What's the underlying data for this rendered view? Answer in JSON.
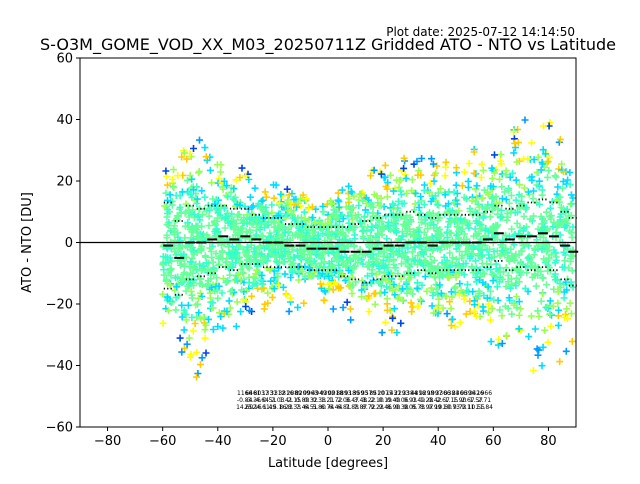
{
  "plot_date": "Plot date: 2025-07-12 14:14:50",
  "chart_data": {
    "type": "scatter",
    "title": "S-O3M_GOME_VOD_XX_M03_20250711Z Gridded ATO - NTO vs Latitude",
    "xlabel": "Latitude [degrees]",
    "ylabel": "ATO - NTO [DU]",
    "xlim": [
      -90,
      90
    ],
    "ylim": [
      -60,
      60
    ],
    "xticks": [
      -80,
      -60,
      -40,
      -20,
      0,
      20,
      40,
      60,
      80
    ],
    "xtick_labels": [
      "−80",
      "−60",
      "−40",
      "−20",
      "0",
      "20",
      "40",
      "60",
      "80"
    ],
    "yticks": [
      -60,
      -40,
      -20,
      0,
      20,
      40,
      60
    ],
    "ytick_labels": [
      "−60",
      "−40",
      "−20",
      "0",
      "20",
      "40",
      "60"
    ],
    "grid": false,
    "legend": false,
    "zero_line": 0,
    "marker": "plus",
    "point_colors": [
      "#66ff99",
      "#33ffcc",
      "#00ddff",
      "#99ff55",
      "#ffff00",
      "#ffcc00",
      "#0099ff",
      "#0044ee",
      "#000099"
    ],
    "envelope": [
      {
        "lat": -60,
        "low": -32,
        "high": 22
      },
      {
        "lat": -55,
        "low": -42,
        "high": 30
      },
      {
        "lat": -50,
        "low": -48,
        "high": 32
      },
      {
        "lat": -45,
        "low": -45,
        "high": 34
      },
      {
        "lat": -40,
        "low": -35,
        "high": 32
      },
      {
        "lat": -35,
        "low": -28,
        "high": 30
      },
      {
        "lat": -30,
        "low": -26,
        "high": 25
      },
      {
        "lat": -25,
        "low": -25,
        "high": 22
      },
      {
        "lat": -20,
        "low": -24,
        "high": 20
      },
      {
        "lat": -15,
        "low": -24,
        "high": 18
      },
      {
        "lat": -10,
        "low": -22,
        "high": 16
      },
      {
        "lat": -5,
        "low": -21,
        "high": 14
      },
      {
        "lat": 0,
        "low": -22,
        "high": 15
      },
      {
        "lat": 5,
        "low": -24,
        "high": 17
      },
      {
        "lat": 10,
        "low": -26,
        "high": 20
      },
      {
        "lat": 15,
        "low": -28,
        "high": 23
      },
      {
        "lat": 20,
        "low": -30,
        "high": 26
      },
      {
        "lat": 25,
        "low": -30,
        "high": 28
      },
      {
        "lat": 30,
        "low": -32,
        "high": 30
      },
      {
        "lat": 35,
        "low": -32,
        "high": 28
      },
      {
        "lat": 40,
        "low": -30,
        "high": 27
      },
      {
        "lat": 45,
        "low": -28,
        "high": 28
      },
      {
        "lat": 50,
        "low": -28,
        "high": 30
      },
      {
        "lat": 55,
        "low": -30,
        "high": 32
      },
      {
        "lat": 60,
        "low": -34,
        "high": 34
      },
      {
        "lat": 65,
        "low": -40,
        "high": 38
      },
      {
        "lat": 70,
        "low": -40,
        "high": 40
      },
      {
        "lat": 75,
        "low": -42,
        "high": 42
      },
      {
        "lat": 80,
        "low": -42,
        "high": 40
      },
      {
        "lat": 85,
        "low": -38,
        "high": 36
      },
      {
        "lat": 89,
        "low": -34,
        "high": 30
      }
    ],
    "bin_mean": [
      {
        "lat": -58,
        "value": -1
      },
      {
        "lat": -54,
        "value": -5
      },
      {
        "lat": -50,
        "value": 0
      },
      {
        "lat": -46,
        "value": 0
      },
      {
        "lat": -42,
        "value": 1
      },
      {
        "lat": -38,
        "value": 2
      },
      {
        "lat": -34,
        "value": 1
      },
      {
        "lat": -30,
        "value": 2
      },
      {
        "lat": -26,
        "value": 1
      },
      {
        "lat": -22,
        "value": 0
      },
      {
        "lat": -18,
        "value": 0
      },
      {
        "lat": -14,
        "value": -1
      },
      {
        "lat": -10,
        "value": -1
      },
      {
        "lat": -6,
        "value": -2
      },
      {
        "lat": -2,
        "value": -2
      },
      {
        "lat": 2,
        "value": -2
      },
      {
        "lat": 6,
        "value": -3
      },
      {
        "lat": 10,
        "value": -3
      },
      {
        "lat": 14,
        "value": -3
      },
      {
        "lat": 18,
        "value": -2
      },
      {
        "lat": 22,
        "value": -1
      },
      {
        "lat": 26,
        "value": -1
      },
      {
        "lat": 30,
        "value": 0
      },
      {
        "lat": 34,
        "value": 0
      },
      {
        "lat": 38,
        "value": -1
      },
      {
        "lat": 42,
        "value": 0
      },
      {
        "lat": 46,
        "value": 0
      },
      {
        "lat": 50,
        "value": 0
      },
      {
        "lat": 54,
        "value": 0
      },
      {
        "lat": 58,
        "value": 1
      },
      {
        "lat": 62,
        "value": 3
      },
      {
        "lat": 66,
        "value": 1
      },
      {
        "lat": 70,
        "value": 2
      },
      {
        "lat": 74,
        "value": 2
      },
      {
        "lat": 78,
        "value": 3
      },
      {
        "lat": 82,
        "value": 2
      },
      {
        "lat": 86,
        "value": -1
      },
      {
        "lat": 89,
        "value": -3
      }
    ],
    "bin_stdev": [
      {
        "lat": -58,
        "value": 14
      },
      {
        "lat": -54,
        "value": 12
      },
      {
        "lat": -50,
        "value": 12
      },
      {
        "lat": -46,
        "value": 11
      },
      {
        "lat": -42,
        "value": 11
      },
      {
        "lat": -38,
        "value": 10
      },
      {
        "lat": -34,
        "value": 10
      },
      {
        "lat": -30,
        "value": 9
      },
      {
        "lat": -26,
        "value": 8
      },
      {
        "lat": -22,
        "value": 8
      },
      {
        "lat": -18,
        "value": 8
      },
      {
        "lat": -14,
        "value": 7
      },
      {
        "lat": -10,
        "value": 7
      },
      {
        "lat": -6,
        "value": 7
      },
      {
        "lat": -2,
        "value": 7
      },
      {
        "lat": 2,
        "value": 7
      },
      {
        "lat": 6,
        "value": 8
      },
      {
        "lat": 10,
        "value": 9
      },
      {
        "lat": 14,
        "value": 10
      },
      {
        "lat": 18,
        "value": 10
      },
      {
        "lat": 22,
        "value": 10
      },
      {
        "lat": 26,
        "value": 10
      },
      {
        "lat": 30,
        "value": 10
      },
      {
        "lat": 34,
        "value": 9
      },
      {
        "lat": 38,
        "value": 9
      },
      {
        "lat": 42,
        "value": 9
      },
      {
        "lat": 46,
        "value": 9
      },
      {
        "lat": 50,
        "value": 9
      },
      {
        "lat": 54,
        "value": 9
      },
      {
        "lat": 58,
        "value": 9
      },
      {
        "lat": 62,
        "value": 9
      },
      {
        "lat": 66,
        "value": 10
      },
      {
        "lat": 70,
        "value": 10
      },
      {
        "lat": 74,
        "value": 11
      },
      {
        "lat": 78,
        "value": 11
      },
      {
        "lat": 82,
        "value": 11
      },
      {
        "lat": 86,
        "value": 11
      },
      {
        "lat": 89,
        "value": 11
      }
    ],
    "bin_stats": [
      {
        "lat": -52,
        "count": "1166",
        "mean": "-0.84",
        "stdev": "14.60"
      },
      {
        "lat": -49,
        "count": "6461",
        "mean": "-3.36",
        "stdev": "25.16"
      },
      {
        "lat": -46,
        "count": "8037",
        "mean": "-4.64",
        "stdev": "24.61"
      },
      {
        "lat": -43,
        "count": "1331",
        "mean": "0.51",
        "stdev": "1.49"
      },
      {
        "lat": -40,
        "count": "3312",
        "mean": "2.03",
        "stdev": "15.16"
      },
      {
        "lat": -37,
        "count": "3816",
        "mean": "1.41",
        "stdev": "8.23"
      },
      {
        "lat": -34,
        "count": "2089",
        "mean": "2.15",
        "stdev": "8.33"
      },
      {
        "lat": -31,
        "count": "8209",
        "mean": "0.80",
        "stdev": "7.44"
      },
      {
        "lat": -28,
        "count": "9963",
        "mean": "0.32",
        "stdev": "6.51"
      },
      {
        "lat": -25,
        "count": "4949",
        "mean": "0.38",
        "stdev": "5.80"
      },
      {
        "lat": -22,
        "count": "4392",
        "mean": "1.21",
        "stdev": "6.74"
      },
      {
        "lat": -19,
        "count": "0918",
        "mean": "1.72",
        "stdev": "6.44"
      },
      {
        "lat": -16,
        "count": "8893",
        "mean": "2.06",
        "stdev": "6.81"
      },
      {
        "lat": -13,
        "count": "9189",
        "mean": "3.47",
        "stdev": "7.88"
      },
      {
        "lat": -10,
        "count": "3593",
        "mean": "3.48",
        "stdev": "7.87"
      },
      {
        "lat": -7,
        "count": "9579",
        "mean": "3.22",
        "stdev": "8.72"
      },
      {
        "lat": -4,
        "count": "8510",
        "mean": "2.10",
        "stdev": "9.23"
      },
      {
        "lat": -1,
        "count": "2075",
        "mean": "0.19",
        "stdev": "9.46"
      },
      {
        "lat": 2,
        "count": "1431",
        "mean": "0.40",
        "stdev": "8.90"
      },
      {
        "lat": 5,
        "count": "2293",
        "mean": "0.06",
        "stdev": "9.38"
      },
      {
        "lat": 8,
        "count": "3384",
        "mean": "0.93",
        "stdev": "9.05"
      },
      {
        "lat": 11,
        "count": "4818",
        "mean": "0.49",
        "stdev": "8.73"
      },
      {
        "lat": 14,
        "count": "9298",
        "mean": "1.28",
        "stdev": "8.97"
      },
      {
        "lat": 17,
        "count": "1997",
        "mean": "0.42",
        "stdev": "9.99"
      },
      {
        "lat": 20,
        "count": "3366",
        "mean": "2.67",
        "stdev": "10.60"
      },
      {
        "lat": 23,
        "count": "0384",
        "mean": "1.15",
        "stdev": "10.73"
      },
      {
        "lat": 26,
        "count": "2366",
        "mean": "1.90",
        "stdev": "9.73"
      },
      {
        "lat": 29,
        "count": "0396",
        "mean": "2.67",
        "stdev": "9.11"
      },
      {
        "lat": 32,
        "count": "3426",
        "mean": "1.57",
        "stdev": "10.55"
      },
      {
        "lat": 35,
        "count": "1966",
        "mean": "2.71",
        "stdev": "11.84"
      }
    ]
  }
}
